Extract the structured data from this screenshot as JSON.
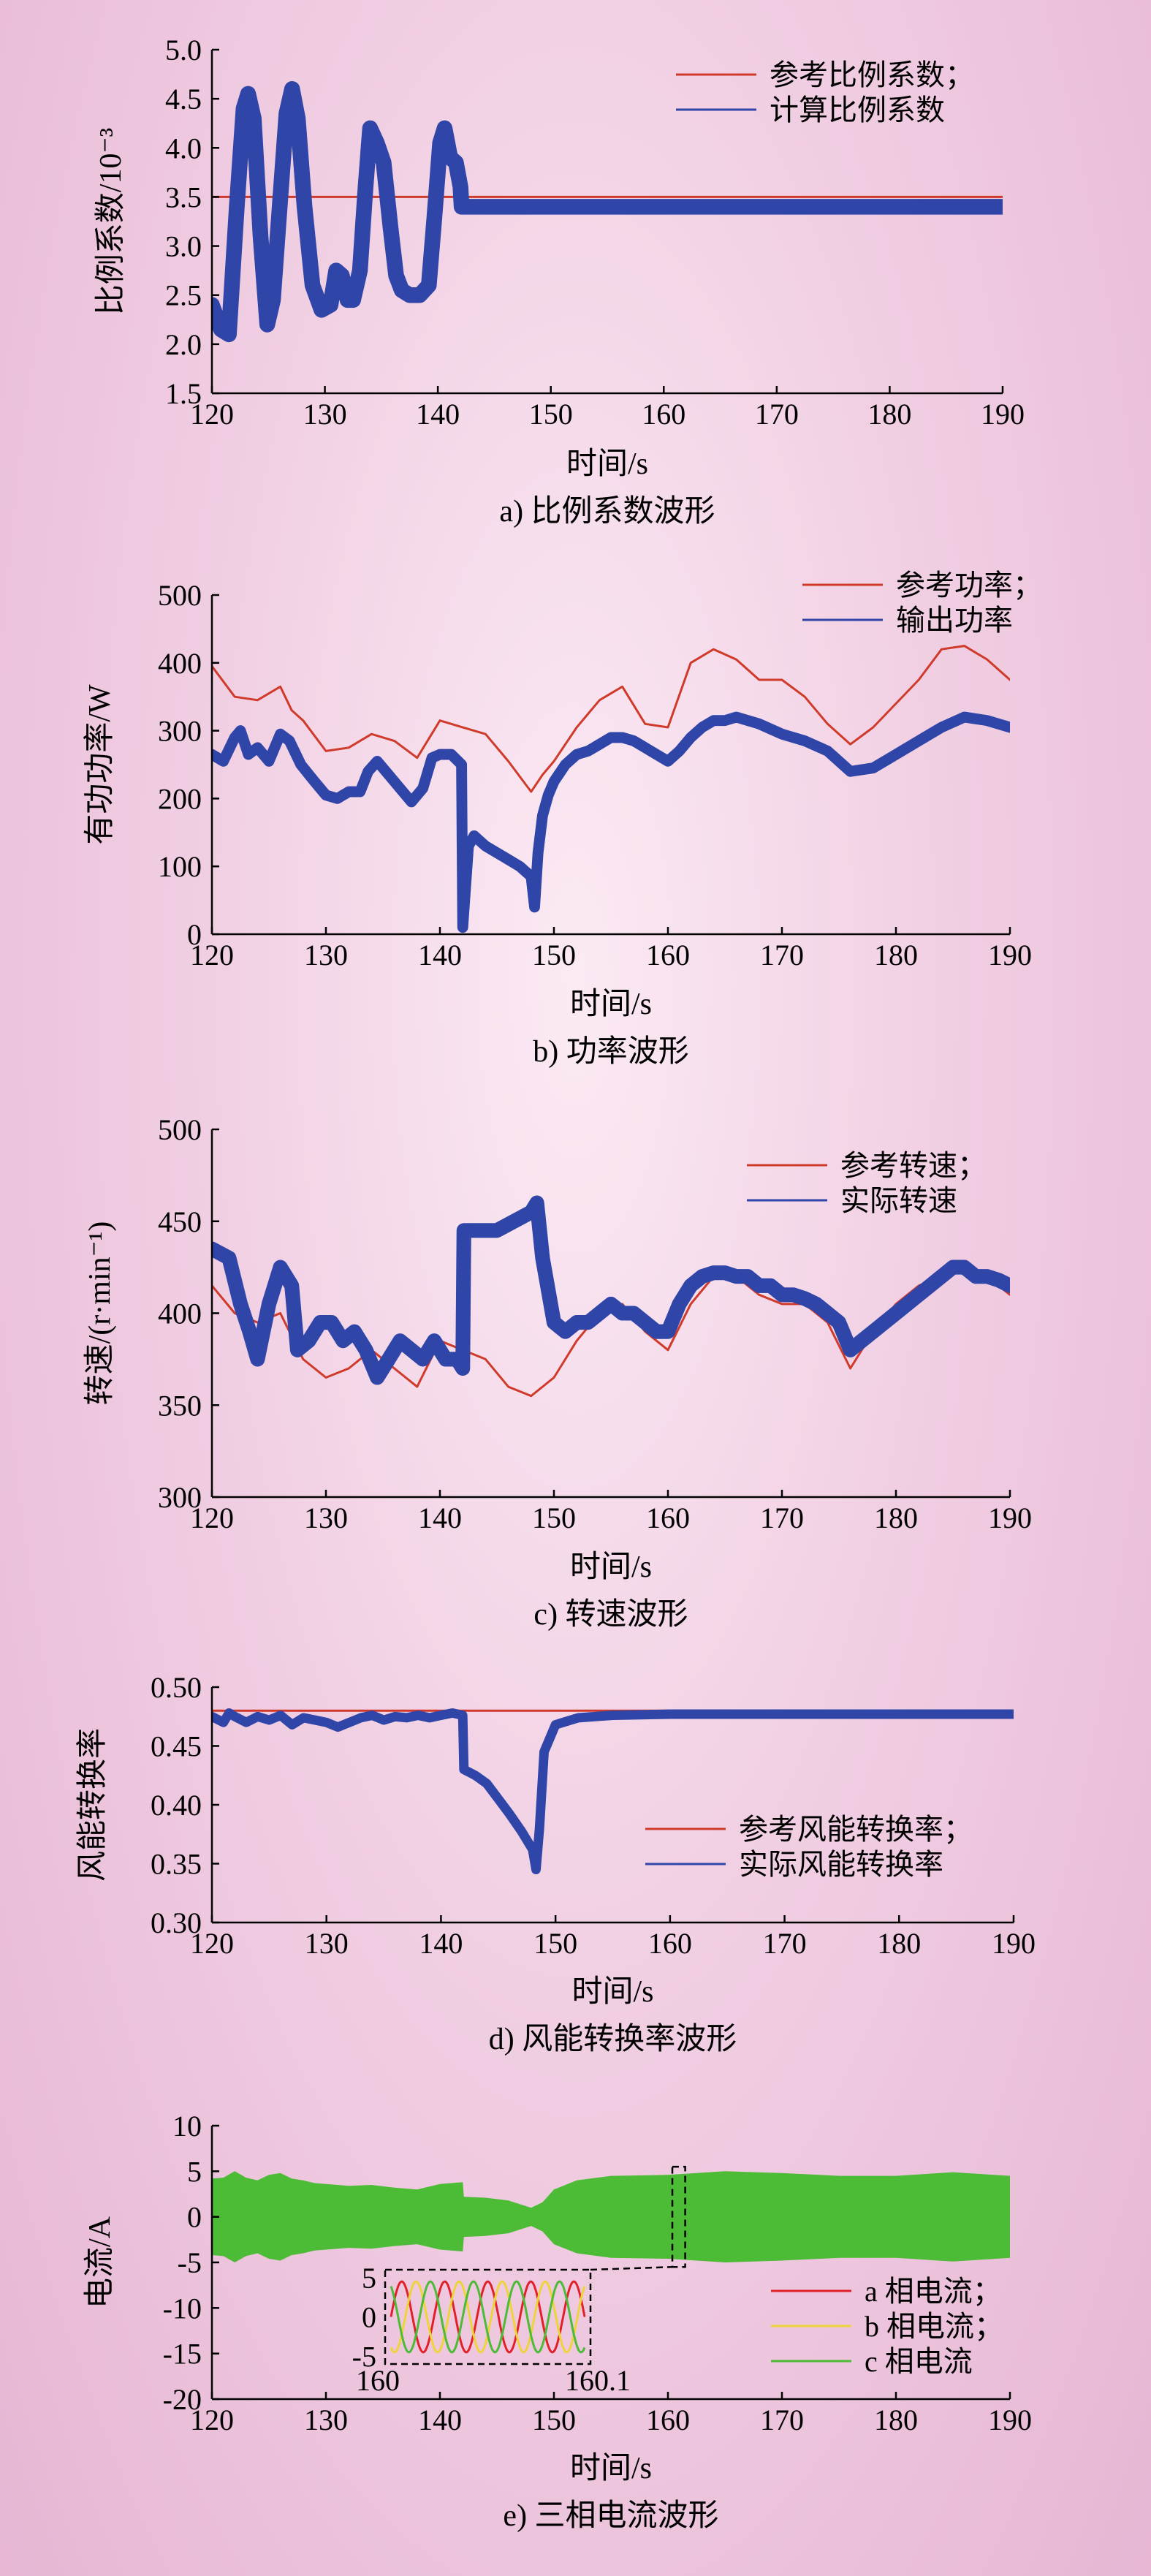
{
  "chart_data": [
    {
      "type": "line",
      "caption": "a) 比例系数波形",
      "xlabel": "时间/s",
      "ylabel": "比例系数/10⁻³",
      "xlim": [
        120,
        190
      ],
      "ylim": [
        1.5,
        5.0
      ],
      "xticks": [
        120,
        130,
        140,
        150,
        160,
        170,
        180,
        190
      ],
      "yticks": [
        1.5,
        2.0,
        2.5,
        3.0,
        3.5,
        4.0,
        4.5,
        5.0
      ],
      "legend_position": "top-right",
      "series": [
        {
          "name": "参考比例系数；",
          "color": "#d03a2a",
          "x": [
            120,
            190
          ],
          "y": [
            3.5,
            3.5
          ]
        },
        {
          "name": "计算比例系数",
          "color": "#2f45a8",
          "band": 0.08,
          "x": [
            120,
            120.8,
            121.5,
            122.2,
            122.8,
            123.2,
            123.7,
            124.3,
            124.9,
            125.4,
            126.0,
            126.6,
            127.1,
            127.6,
            128.2,
            128.9,
            129.7,
            130.5,
            131.0,
            131.5,
            132.0,
            132.5,
            133.1,
            133.6,
            134.0,
            134.6,
            135.2,
            135.8,
            136.3,
            136.8,
            137.5,
            138.4,
            139.2,
            139.7,
            140.2,
            140.6,
            141.1,
            141.6,
            142.0,
            142.1,
            190
          ],
          "y": [
            2.4,
            2.15,
            2.1,
            3.4,
            4.4,
            4.55,
            4.3,
            3.1,
            2.2,
            2.45,
            3.4,
            4.35,
            4.6,
            4.3,
            3.4,
            2.6,
            2.35,
            2.4,
            2.75,
            2.7,
            2.45,
            2.45,
            2.75,
            3.6,
            4.2,
            4.05,
            3.85,
            3.2,
            2.7,
            2.55,
            2.5,
            2.5,
            2.6,
            3.3,
            4.05,
            4.2,
            3.9,
            3.85,
            3.6,
            3.4,
            3.4
          ]
        }
      ]
    },
    {
      "type": "line",
      "caption": "b) 功率波形",
      "xlabel": "时间/s",
      "ylabel": "有功功率/W",
      "xlim": [
        120,
        190
      ],
      "ylim": [
        0,
        500
      ],
      "xticks": [
        120,
        130,
        140,
        150,
        160,
        170,
        180,
        190
      ],
      "yticks": [
        0,
        100,
        200,
        300,
        400,
        500
      ],
      "legend_position": "top-right",
      "series": [
        {
          "name": "参考功率；",
          "color": "#d03a2a",
          "x": [
            120,
            122,
            124,
            126,
            127,
            128,
            130,
            132,
            134,
            136,
            138,
            140,
            142,
            144,
            146,
            148,
            149,
            150,
            152,
            154,
            156,
            158,
            160,
            162,
            164,
            166,
            168,
            170,
            172,
            174,
            176,
            178,
            180,
            182,
            184,
            186,
            188,
            190
          ],
          "y": [
            395,
            350,
            345,
            365,
            330,
            315,
            270,
            275,
            295,
            285,
            260,
            315,
            305,
            295,
            255,
            210,
            235,
            255,
            305,
            345,
            365,
            310,
            305,
            400,
            420,
            405,
            375,
            375,
            350,
            310,
            280,
            305,
            340,
            375,
            420,
            425,
            405,
            375
          ]
        },
        {
          "name": "输出功率",
          "color": "#2f45a8",
          "band": 8,
          "x": [
            120,
            121,
            122,
            122.5,
            123.2,
            124,
            125,
            126,
            126.8,
            127.8,
            129,
            130,
            131,
            132,
            133,
            133.7,
            134.5,
            135.5,
            136.5,
            137.5,
            138.5,
            139.3,
            140,
            141,
            141.9,
            142,
            142.5,
            143,
            144,
            145,
            146,
            147,
            148,
            148.3,
            148.6,
            149,
            149.5,
            150,
            151,
            152,
            153,
            154,
            155,
            156,
            157,
            158,
            159,
            160,
            161,
            162,
            163,
            164,
            165,
            166,
            168,
            170,
            172,
            174,
            176,
            178,
            180,
            182,
            184,
            186,
            188,
            190
          ],
          "y": [
            265,
            255,
            290,
            300,
            265,
            275,
            255,
            295,
            285,
            250,
            225,
            205,
            200,
            210,
            210,
            240,
            255,
            235,
            215,
            195,
            215,
            260,
            265,
            265,
            250,
            10,
            130,
            145,
            130,
            120,
            110,
            100,
            85,
            40,
            120,
            175,
            205,
            225,
            250,
            265,
            270,
            280,
            290,
            290,
            285,
            275,
            265,
            255,
            270,
            290,
            305,
            315,
            315,
            320,
            310,
            295,
            285,
            270,
            240,
            245,
            265,
            285,
            305,
            320,
            315,
            305
          ]
        }
      ]
    },
    {
      "type": "line",
      "caption": "c) 转速波形",
      "xlabel": "时间/s",
      "ylabel": "转速/(r·min⁻¹)",
      "xlim": [
        120,
        190
      ],
      "ylim": [
        300,
        500
      ],
      "xticks": [
        120,
        130,
        140,
        150,
        160,
        170,
        180,
        190
      ],
      "yticks": [
        300,
        350,
        400,
        450,
        500
      ],
      "legend_position": "top-right",
      "series": [
        {
          "name": "参考转速；",
          "color": "#d03a2a",
          "x": [
            120,
            122,
            124,
            126,
            128,
            130,
            132,
            134,
            136,
            138,
            140,
            142,
            144,
            146,
            148,
            150,
            152,
            154,
            156,
            158,
            160,
            162,
            164,
            166,
            168,
            170,
            172,
            174,
            176,
            178,
            180,
            182,
            184,
            186,
            188,
            190
          ],
          "y": [
            415,
            400,
            395,
            400,
            375,
            365,
            370,
            380,
            370,
            360,
            385,
            380,
            375,
            360,
            355,
            365,
            385,
            400,
            405,
            390,
            380,
            405,
            420,
            420,
            410,
            405,
            405,
            395,
            370,
            390,
            405,
            415,
            420,
            425,
            420,
            410
          ]
        },
        {
          "name": "实际转速",
          "color": "#2f45a8",
          "band": 4,
          "x": [
            120,
            121.5,
            122.5,
            123.3,
            124,
            125,
            126,
            127,
            127.5,
            128.5,
            129.5,
            130.5,
            131.5,
            132.5,
            133.5,
            134.5,
            135.5,
            136.5,
            137.5,
            138.5,
            139.5,
            140.5,
            141.5,
            142,
            142.1,
            145,
            148,
            148.5,
            149,
            150,
            151,
            152,
            153,
            154,
            155,
            156,
            157,
            158,
            159,
            160,
            161,
            162,
            163,
            164,
            165,
            166,
            167,
            168,
            169,
            170,
            171,
            172,
            173,
            174,
            175,
            176,
            177,
            178,
            179,
            180,
            181,
            182,
            183,
            184,
            185,
            186,
            187,
            188,
            189,
            190
          ],
          "y": [
            435,
            430,
            405,
            390,
            375,
            405,
            425,
            415,
            380,
            385,
            395,
            395,
            385,
            390,
            380,
            365,
            375,
            385,
            380,
            375,
            385,
            375,
            375,
            370,
            445,
            445,
            455,
            460,
            430,
            395,
            390,
            395,
            395,
            400,
            405,
            400,
            400,
            395,
            390,
            390,
            405,
            415,
            420,
            422,
            422,
            420,
            420,
            415,
            415,
            410,
            410,
            408,
            405,
            400,
            395,
            380,
            385,
            390,
            395,
            400,
            405,
            410,
            415,
            420,
            425,
            425,
            420,
            420,
            418,
            415
          ]
        }
      ]
    },
    {
      "type": "line",
      "caption": "d) 风能转换率波形",
      "xlabel": "时间/s",
      "ylabel": "风能转换率",
      "xlim": [
        120,
        190
      ],
      "ylim": [
        0.3,
        0.5
      ],
      "xticks": [
        120,
        130,
        140,
        150,
        160,
        170,
        180,
        190
      ],
      "yticks": [
        "0.30",
        "0.35",
        "0.40",
        "0.45",
        "0.50"
      ],
      "legend_position": "center-right",
      "series": [
        {
          "name": "参考风能转换率；",
          "color": "#d03a2a",
          "x": [
            120,
            190
          ],
          "y": [
            0.48,
            0.48
          ]
        },
        {
          "name": "实际风能转换率",
          "color": "#2f45a8",
          "band": 0.004,
          "x": [
            120,
            121,
            121.5,
            122,
            123,
            124,
            125,
            126,
            127,
            128,
            129,
            130,
            131,
            132,
            133,
            134,
            135,
            136,
            137,
            138,
            139,
            140,
            141,
            141.9,
            142,
            143,
            144,
            145,
            146,
            147,
            148,
            148.3,
            148.6,
            149,
            150,
            152,
            155,
            160,
            170,
            180,
            190
          ],
          "y": [
            0.475,
            0.47,
            0.478,
            0.475,
            0.47,
            0.475,
            0.472,
            0.476,
            0.468,
            0.474,
            0.472,
            0.47,
            0.466,
            0.47,
            0.474,
            0.476,
            0.472,
            0.475,
            0.474,
            0.476,
            0.474,
            0.476,
            0.478,
            0.476,
            0.43,
            0.425,
            0.418,
            0.405,
            0.392,
            0.378,
            0.362,
            0.345,
            0.38,
            0.445,
            0.468,
            0.474,
            0.476,
            0.477,
            0.477,
            0.477,
            0.477
          ]
        }
      ]
    },
    {
      "type": "line",
      "caption": "e) 三相电流波形",
      "xlabel": "时间/s",
      "ylabel": "电流/A",
      "xlim": [
        120,
        190
      ],
      "ylim": [
        -20,
        10
      ],
      "xticks": [
        120,
        130,
        140,
        150,
        160,
        170,
        180,
        190
      ],
      "yticks": [
        -20,
        -15,
        -10,
        -5,
        0,
        5,
        10
      ],
      "legend_position": "bottom-right",
      "envelope": {
        "color": "#4cbb35",
        "x": [
          120,
          121,
          122,
          123,
          124,
          125,
          126,
          127,
          128,
          129,
          130,
          132,
          134,
          136,
          138,
          140,
          142,
          142.1,
          144,
          146,
          148,
          149,
          150,
          152,
          155,
          160,
          165,
          170,
          175,
          180,
          185,
          190
        ],
        "amplitude": [
          4.2,
          4.3,
          5.0,
          4.3,
          4.0,
          4.6,
          4.8,
          4.2,
          4.0,
          3.7,
          3.6,
          3.4,
          3.5,
          3.2,
          3.0,
          3.6,
          3.8,
          2.2,
          2.1,
          1.8,
          1.0,
          1.6,
          3.0,
          4.0,
          4.5,
          4.6,
          5.0,
          4.8,
          4.5,
          4.5,
          4.9,
          4.5
        ]
      },
      "inset": {
        "x_from": "160",
        "x_to": "160.1",
        "yticks": [
          5,
          0,
          -5
        ],
        "source_window": [
          160,
          161,
          -5.5,
          5.5
        ],
        "phases": [
          {
            "color": "#e2202a",
            "phase_deg": 0
          },
          {
            "color": "#ecd43a",
            "phase_deg": 120
          },
          {
            "color": "#4cbb35",
            "phase_deg": 240
          }
        ],
        "cycles": 4.5,
        "amplitude": 4.5
      },
      "series": [
        {
          "name": "a 相电流；",
          "color": "#e2202a"
        },
        {
          "name": "b 相电流；",
          "color": "#ecd43a"
        },
        {
          "name": "c 相电流",
          "color": "#4cbb35"
        }
      ]
    }
  ]
}
